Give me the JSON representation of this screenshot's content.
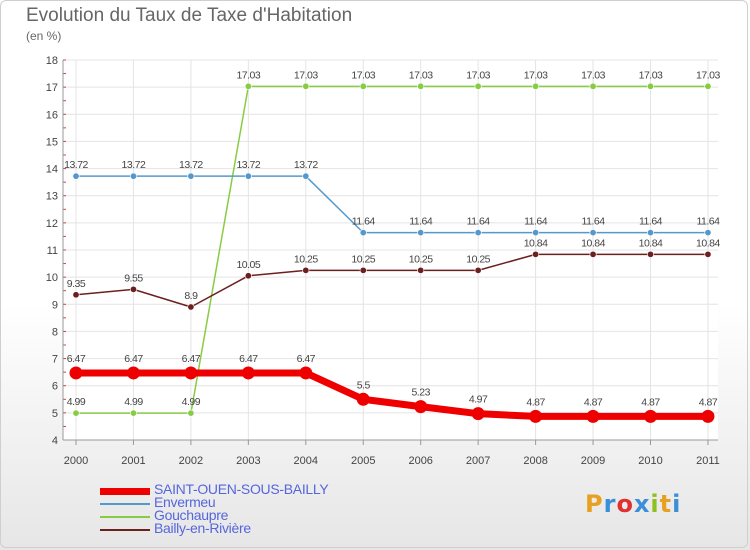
{
  "title": "Evolution du Taux de Taxe d'Habitation",
  "unit": "(en %)",
  "logo": "Proxiti",
  "logo_colors": [
    "#e8a020",
    "#3a8fd8",
    "#e03030",
    "#3a8fd8",
    "#8fc020",
    "#e8a020",
    "#3a8fd8"
  ],
  "chart_data": {
    "type": "line",
    "x": [
      "2000",
      "2001",
      "2002",
      "2003",
      "2004",
      "2005",
      "2006",
      "2007",
      "2008",
      "2009",
      "2010",
      "2011"
    ],
    "ylim": [
      4,
      18
    ],
    "yticks": [
      4,
      5,
      6,
      7,
      8,
      9,
      10,
      11,
      12,
      13,
      14,
      15,
      16,
      17,
      18
    ],
    "grid": true,
    "legend_position": "bottom-left",
    "series": [
      {
        "name": "Gouchaupre",
        "color": "#88cc44",
        "values": [
          4.99,
          4.99,
          4.99,
          17.03,
          17.03,
          17.03,
          17.03,
          17.03,
          17.03,
          17.03,
          17.03,
          17.03
        ],
        "labels": [
          "4.99",
          "4.99",
          "4.99",
          "17.03",
          "17.03",
          "17.03",
          "17.03",
          "17.03",
          "17.03",
          "17.03",
          "17.03",
          "17.03"
        ]
      },
      {
        "name": "Envermeu",
        "color": "#5599cc",
        "values": [
          13.72,
          13.72,
          13.72,
          13.72,
          13.72,
          11.64,
          11.64,
          11.64,
          11.64,
          11.64,
          11.64,
          11.64
        ],
        "labels": [
          "13.72",
          "13.72",
          "13.72",
          "13.72",
          "13.72",
          "11.64",
          "11.64",
          "11.64",
          "11.64",
          "11.64",
          "11.64",
          "11.64"
        ]
      },
      {
        "name": "Bailly-en-Rivière",
        "color": "#6b2020",
        "values": [
          9.35,
          9.55,
          8.9,
          10.05,
          10.25,
          10.25,
          10.25,
          10.25,
          10.84,
          10.84,
          10.84,
          10.84
        ],
        "labels": [
          "9.35",
          "9.55",
          "8.9",
          "10.05",
          "10.25",
          "10.25",
          "10.25",
          "10.25",
          "10.84",
          "10.84",
          "10.84",
          "10.84"
        ]
      },
      {
        "name": "SAINT-OUEN-SOUS-BAILLY",
        "color": "#ee0000",
        "values": [
          6.47,
          6.47,
          6.47,
          6.47,
          6.47,
          5.5,
          5.23,
          4.97,
          4.87,
          4.87,
          4.87,
          4.87
        ],
        "labels": [
          "6.47",
          "6.47",
          "6.47",
          "6.47",
          "6.47",
          "5.5",
          "5.23",
          "4.97",
          "4.87",
          "4.87",
          "4.87",
          "4.87"
        ]
      }
    ]
  },
  "legend": [
    {
      "label": "SAINT-OUEN-SOUS-BAILLY",
      "color": "#ee0000",
      "thick": true
    },
    {
      "label": "Envermeu",
      "color": "#5599cc",
      "thick": false
    },
    {
      "label": "Gouchaupre",
      "color": "#88cc44",
      "thick": false
    },
    {
      "label": "Bailly-en-Rivière",
      "color": "#6b2020",
      "thick": false
    }
  ]
}
